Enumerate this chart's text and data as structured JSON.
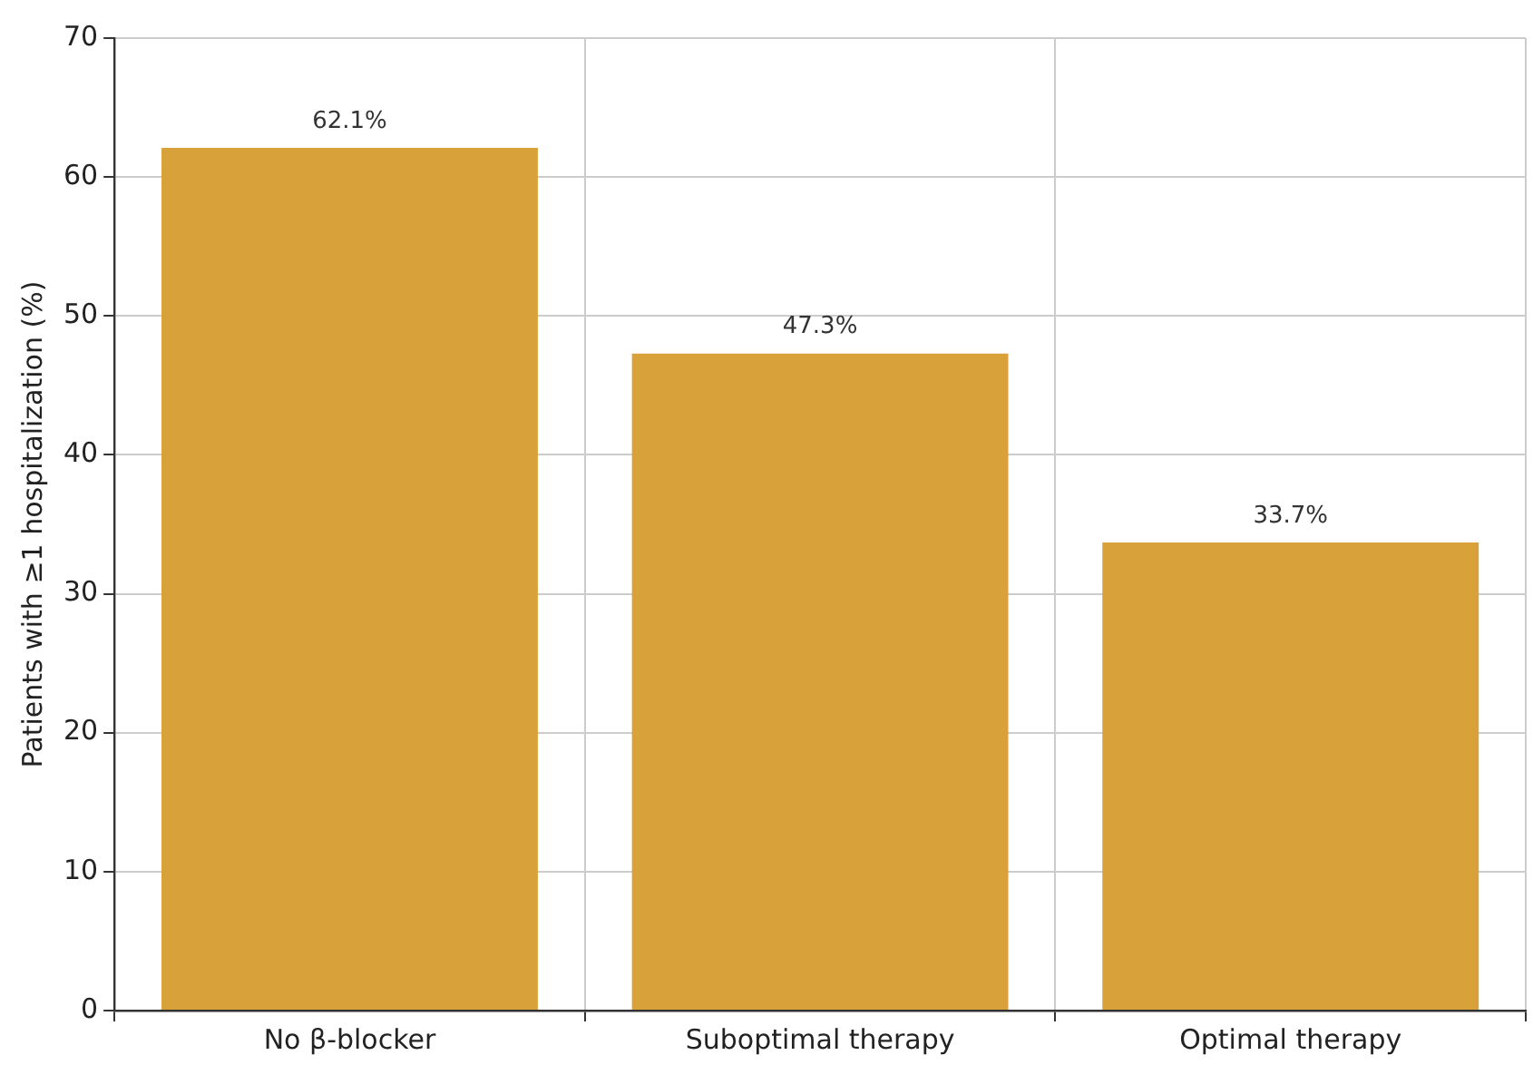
{
  "chart_data": {
    "type": "bar",
    "ylabel": "Patients with ≥1 hospitalization (%)",
    "categories": [
      "No β-blocker",
      "Suboptimal therapy",
      "Optimal therapy"
    ],
    "values": [
      62.1,
      47.3,
      33.7
    ],
    "value_labels": [
      "62.1%",
      "47.3%",
      "33.7%"
    ],
    "color": "#d9a139",
    "ylim": [
      0,
      70
    ],
    "yticks": [
      0,
      10,
      20,
      30,
      40,
      50,
      60,
      70
    ],
    "grid": true,
    "legend": false
  }
}
